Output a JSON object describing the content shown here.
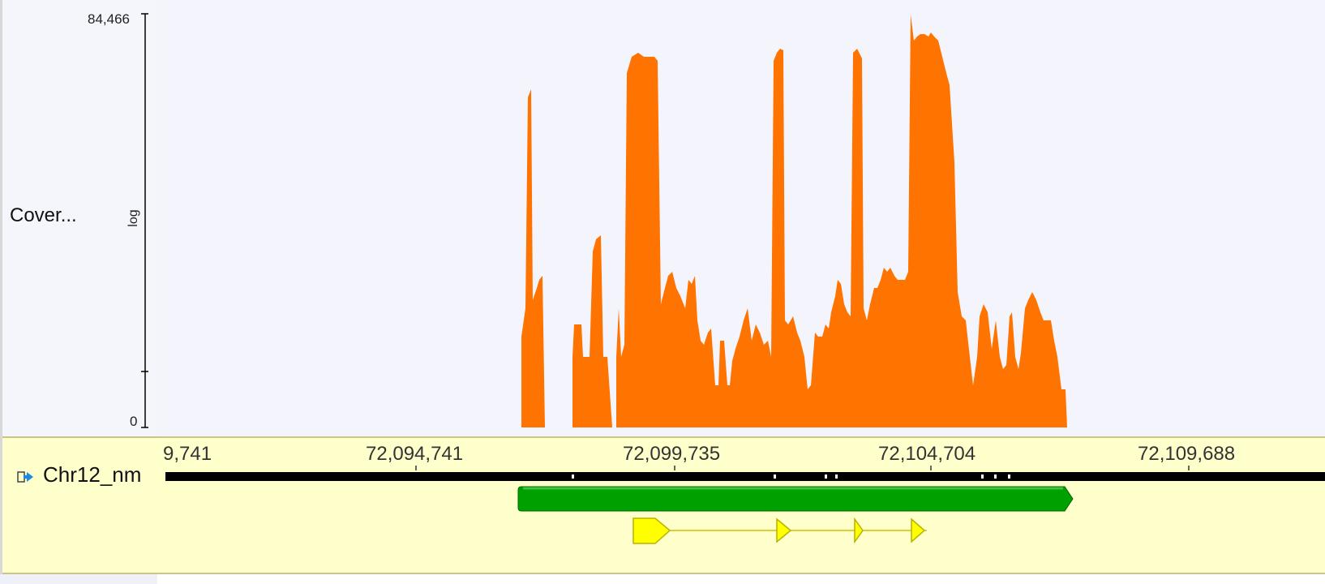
{
  "coverage_track": {
    "name": "Cover...",
    "scale_label": "log",
    "y_max_label": "84,466",
    "y_min_label": "0",
    "color": "#ff7400"
  },
  "annotation_track": {
    "name": "Chr12_nm",
    "background": "#ffffcc",
    "gene_color": "#00a000",
    "feature_color": "#ffff00"
  },
  "axis": {
    "ticks": [
      {
        "label": "9,741"
      },
      {
        "label": "72,094,741"
      },
      {
        "label": "72,099,735"
      },
      {
        "label": "72,104,704"
      },
      {
        "label": "72,109,688"
      }
    ]
  },
  "icons": {
    "collapse": "collapse-arrow-icon"
  }
}
